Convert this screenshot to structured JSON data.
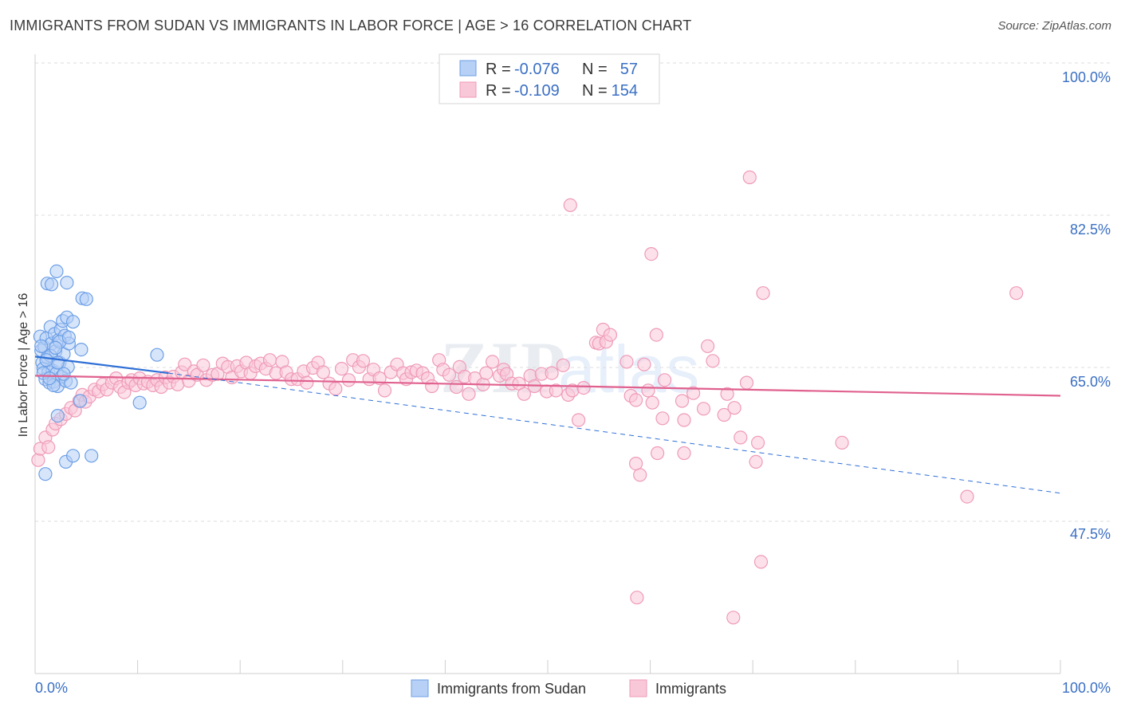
{
  "header": {
    "title": "IMMIGRANTS FROM SUDAN VS IMMIGRANTS IN LABOR FORCE | AGE > 16 CORRELATION CHART",
    "source": "Source: ZipAtlas.com"
  },
  "chart_data": {
    "type": "scatter",
    "title": "IMMIGRANTS FROM SUDAN VS IMMIGRANTS IN LABOR FORCE | AGE > 16 CORRELATION CHART",
    "ylabel": "In Labor Force | Age > 16",
    "xlabel": "",
    "x_tick_labels": {
      "min": "0.0%",
      "max": "100.0%"
    },
    "y_tick_labels": [
      "47.5%",
      "65.0%",
      "82.5%",
      "100.0%"
    ],
    "y_tick_values": [
      47.5,
      65.0,
      82.5,
      100.0
    ],
    "xlim": [
      0,
      100
    ],
    "ylim": [
      31.5,
      102
    ],
    "grid": true,
    "watermark": "ZIPatlas",
    "legend": {
      "placement": "top-center",
      "entries": [
        {
          "r_label": "R =",
          "r_value": "-0.076",
          "n_label": "N =",
          "n_value": "57"
        },
        {
          "r_label": "R =",
          "r_value": "-0.109",
          "n_label": "N =",
          "n_value": "154"
        }
      ]
    },
    "series": [
      {
        "name": "Immigrants from Sudan",
        "color": "#7fadee",
        "line_color": "#2f6fd6",
        "trend": {
          "solid": [
            [
              0,
              67.9
            ],
            [
              13,
              66.0
            ]
          ],
          "dashed": [
            [
              13,
              66.0
            ],
            [
              100,
              52.2
            ]
          ]
        },
        "points": [
          [
            0.5,
            70.2
          ],
          [
            0.6,
            68.6
          ],
          [
            0.7,
            67.2
          ],
          [
            0.8,
            66.5
          ],
          [
            0.9,
            69.0
          ],
          [
            1.0,
            65.3
          ],
          [
            1.1,
            70.0
          ],
          [
            1.2,
            67.8
          ],
          [
            1.3,
            66.1
          ],
          [
            1.4,
            64.9
          ],
          [
            1.5,
            71.3
          ],
          [
            1.6,
            69.4
          ],
          [
            1.7,
            66.3
          ],
          [
            1.8,
            65.0
          ],
          [
            1.9,
            70.5
          ],
          [
            2.0,
            68.5
          ],
          [
            2.1,
            66.0
          ],
          [
            2.2,
            64.5
          ],
          [
            2.3,
            69.8
          ],
          [
            2.4,
            67.2
          ],
          [
            2.5,
            71.0
          ],
          [
            2.6,
            65.6
          ],
          [
            2.7,
            72.0
          ],
          [
            2.8,
            68.2
          ],
          [
            2.9,
            70.3
          ],
          [
            3.0,
            65.1
          ],
          [
            3.1,
            72.4
          ],
          [
            3.2,
            66.7
          ],
          [
            3.3,
            69.4
          ],
          [
            3.5,
            64.9
          ],
          [
            1.2,
            76.3
          ],
          [
            1.6,
            76.2
          ],
          [
            2.1,
            77.7
          ],
          [
            3.1,
            76.4
          ],
          [
            4.6,
            74.6
          ],
          [
            5.0,
            74.5
          ],
          [
            3.7,
            71.9
          ],
          [
            2.2,
            61.1
          ],
          [
            1.0,
            54.4
          ],
          [
            3.0,
            55.8
          ],
          [
            3.7,
            56.5
          ],
          [
            5.5,
            56.5
          ],
          [
            4.4,
            62.8
          ],
          [
            10.2,
            62.6
          ],
          [
            11.9,
            68.1
          ],
          [
            4.5,
            68.7
          ],
          [
            2.4,
            69.6
          ],
          [
            1.5,
            68.0
          ],
          [
            2.2,
            67.2
          ],
          [
            0.8,
            66.0
          ],
          [
            1.8,
            64.6
          ],
          [
            2.8,
            65.9
          ],
          [
            3.3,
            70.1
          ],
          [
            1.1,
            67.5
          ],
          [
            0.6,
            69.1
          ],
          [
            2.0,
            68.9
          ],
          [
            1.4,
            65.4
          ]
        ]
      },
      {
        "name": "Immigrants",
        "color": "#f4a3bf",
        "line_color": "#e0608e",
        "trend": {
          "solid": [
            [
              0,
              65.7
            ],
            [
              100,
              63.4
            ]
          ]
        },
        "points": [
          [
            0.3,
            56.0
          ],
          [
            0.5,
            57.3
          ],
          [
            1.0,
            58.6
          ],
          [
            1.3,
            57.5
          ],
          [
            1.7,
            59.5
          ],
          [
            2.0,
            60.2
          ],
          [
            2.5,
            60.7
          ],
          [
            3.0,
            61.3
          ],
          [
            3.5,
            62.0
          ],
          [
            3.9,
            61.7
          ],
          [
            4.3,
            62.8
          ],
          [
            4.6,
            63.5
          ],
          [
            4.9,
            62.7
          ],
          [
            5.3,
            63.3
          ],
          [
            5.8,
            64.1
          ],
          [
            6.2,
            63.9
          ],
          [
            6.6,
            64.7
          ],
          [
            7.0,
            64.1
          ],
          [
            7.5,
            64.9
          ],
          [
            7.9,
            65.4
          ],
          [
            8.3,
            64.4
          ],
          [
            8.7,
            63.8
          ],
          [
            9.1,
            64.9
          ],
          [
            9.4,
            65.2
          ],
          [
            9.8,
            64.6
          ],
          [
            10.2,
            65.4
          ],
          [
            10.6,
            64.8
          ],
          [
            11.0,
            65.0
          ],
          [
            11.5,
            64.6
          ],
          [
            11.9,
            65.2
          ],
          [
            12.3,
            64.4
          ],
          [
            12.7,
            65.5
          ],
          [
            13.1,
            64.9
          ],
          [
            13.5,
            65.6
          ],
          [
            13.9,
            64.7
          ],
          [
            14.3,
            66.1
          ],
          [
            14.6,
            67.0
          ],
          [
            15.0,
            65.1
          ],
          [
            15.5,
            66.2
          ],
          [
            15.8,
            65.8
          ],
          [
            16.4,
            66.9
          ],
          [
            16.7,
            65.2
          ],
          [
            17.3,
            65.8
          ],
          [
            17.8,
            65.9
          ],
          [
            18.3,
            67.1
          ],
          [
            18.8,
            66.7
          ],
          [
            19.2,
            65.5
          ],
          [
            19.7,
            66.8
          ],
          [
            20.1,
            66.2
          ],
          [
            20.6,
            67.2
          ],
          [
            21.0,
            66.0
          ],
          [
            21.5,
            66.8
          ],
          [
            22.0,
            67.1
          ],
          [
            22.5,
            66.5
          ],
          [
            22.9,
            67.5
          ],
          [
            23.5,
            66.0
          ],
          [
            24.1,
            67.3
          ],
          [
            24.5,
            66.1
          ],
          [
            25.0,
            65.3
          ],
          [
            25.6,
            65.3
          ],
          [
            26.2,
            66.2
          ],
          [
            26.5,
            64.9
          ],
          [
            27.1,
            66.6
          ],
          [
            27.6,
            67.2
          ],
          [
            28.1,
            66.1
          ],
          [
            28.7,
            64.8
          ],
          [
            29.3,
            64.2
          ],
          [
            29.9,
            66.5
          ],
          [
            30.6,
            65.2
          ],
          [
            31.0,
            67.5
          ],
          [
            31.6,
            66.7
          ],
          [
            32.0,
            67.4
          ],
          [
            32.6,
            65.3
          ],
          [
            33.0,
            66.4
          ],
          [
            33.6,
            65.4
          ],
          [
            34.1,
            64.0
          ],
          [
            34.7,
            66.1
          ],
          [
            35.3,
            67.0
          ],
          [
            35.9,
            66.0
          ],
          [
            36.2,
            65.3
          ],
          [
            36.7,
            66.1
          ],
          [
            37.2,
            66.3
          ],
          [
            37.8,
            66.0
          ],
          [
            38.3,
            65.4
          ],
          [
            38.7,
            64.5
          ],
          [
            39.4,
            67.5
          ],
          [
            39.8,
            66.4
          ],
          [
            40.4,
            65.8
          ],
          [
            41.1,
            64.4
          ],
          [
            41.4,
            66.7
          ],
          [
            41.9,
            65.6
          ],
          [
            42.3,
            63.6
          ],
          [
            42.9,
            65.4
          ],
          [
            43.7,
            64.7
          ],
          [
            44.0,
            66.0
          ],
          [
            44.6,
            67.3
          ],
          [
            45.3,
            65.7
          ],
          [
            45.7,
            66.4
          ],
          [
            46.0,
            65.9
          ],
          [
            46.5,
            64.8
          ],
          [
            47.2,
            64.8
          ],
          [
            47.7,
            63.6
          ],
          [
            48.3,
            65.7
          ],
          [
            48.7,
            64.5
          ],
          [
            49.4,
            65.9
          ],
          [
            49.9,
            63.9
          ],
          [
            50.4,
            66.0
          ],
          [
            50.8,
            64.0
          ],
          [
            51.5,
            66.9
          ],
          [
            52.0,
            63.5
          ],
          [
            52.4,
            64.0
          ],
          [
            53.0,
            60.6
          ],
          [
            53.5,
            64.3
          ],
          [
            54.7,
            69.5
          ],
          [
            55.0,
            69.4
          ],
          [
            55.4,
            71.0
          ],
          [
            55.7,
            69.6
          ],
          [
            56.1,
            70.4
          ],
          [
            57.7,
            67.3
          ],
          [
            58.1,
            63.4
          ],
          [
            58.6,
            62.9
          ],
          [
            59.4,
            67.0
          ],
          [
            59.8,
            64.0
          ],
          [
            60.2,
            62.6
          ],
          [
            60.6,
            70.4
          ],
          [
            61.2,
            60.8
          ],
          [
            61.4,
            65.2
          ],
          [
            63.1,
            62.8
          ],
          [
            63.3,
            60.6
          ],
          [
            64.2,
            63.7
          ],
          [
            65.2,
            61.9
          ],
          [
            65.6,
            69.1
          ],
          [
            66.1,
            67.4
          ],
          [
            67.2,
            61.2
          ],
          [
            67.5,
            63.6
          ],
          [
            68.2,
            62.0
          ],
          [
            68.8,
            58.6
          ],
          [
            69.4,
            64.9
          ],
          [
            70.3,
            55.8
          ],
          [
            70.5,
            58.0
          ],
          [
            52.2,
            85.3
          ],
          [
            69.7,
            88.5
          ],
          [
            60.1,
            79.7
          ],
          [
            71.0,
            75.2
          ],
          [
            60.7,
            56.8
          ],
          [
            63.3,
            56.8
          ],
          [
            59.0,
            54.3
          ],
          [
            58.6,
            55.6
          ],
          [
            70.8,
            44.3
          ],
          [
            78.7,
            58.0
          ],
          [
            90.9,
            51.8
          ],
          [
            58.7,
            40.2
          ],
          [
            68.1,
            37.9
          ],
          [
            95.7,
            75.2
          ]
        ]
      }
    ]
  },
  "bottom_legend": {
    "items": [
      {
        "label": "Immigrants from Sudan"
      },
      {
        "label": "Immigrants"
      }
    ]
  },
  "colors": {
    "blue_fill": "#b7d0f5",
    "blue_stroke": "#6c9fe6",
    "pink_fill": "#f9c8d8",
    "pink_stroke": "#ef9ab8",
    "axis_text": "#3a6fc4",
    "grid": "#dcdcdc"
  }
}
